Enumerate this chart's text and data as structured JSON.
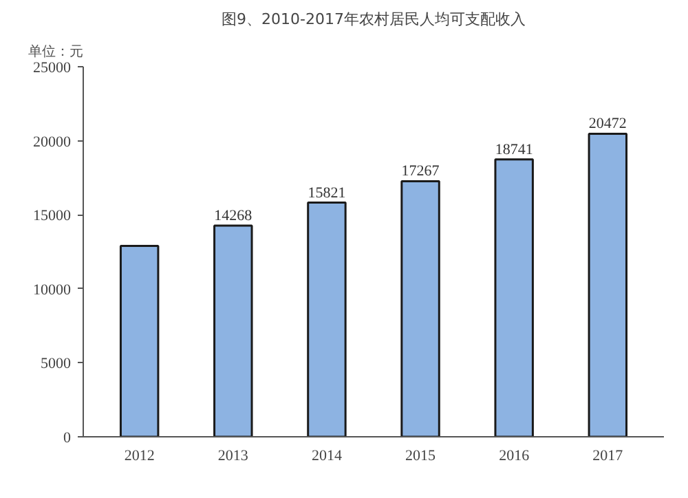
{
  "chart_data": {
    "type": "bar",
    "title": "图9、2010-2017年农村居民人均可支配收入",
    "ylabel": "单位：元",
    "categories": [
      "2012",
      "2013",
      "2014",
      "2015",
      "2016",
      "2017"
    ],
    "values": [
      12900,
      14268,
      15821,
      17267,
      18741,
      20472
    ],
    "value_labels": [
      null,
      "14268",
      "15821",
      "17267",
      "18741",
      "20472"
    ],
    "color": "#8db3e2",
    "ylim": [
      0,
      25000
    ],
    "yticks": [
      0,
      5000,
      10000,
      15000,
      20000,
      25000
    ],
    "grid": false
  }
}
